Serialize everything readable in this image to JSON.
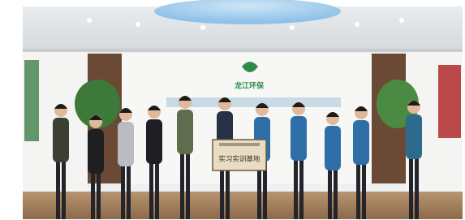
{
  "logo": {
    "text": "龙江环保"
  },
  "plaque": {
    "text": "实习实训基地"
  }
}
